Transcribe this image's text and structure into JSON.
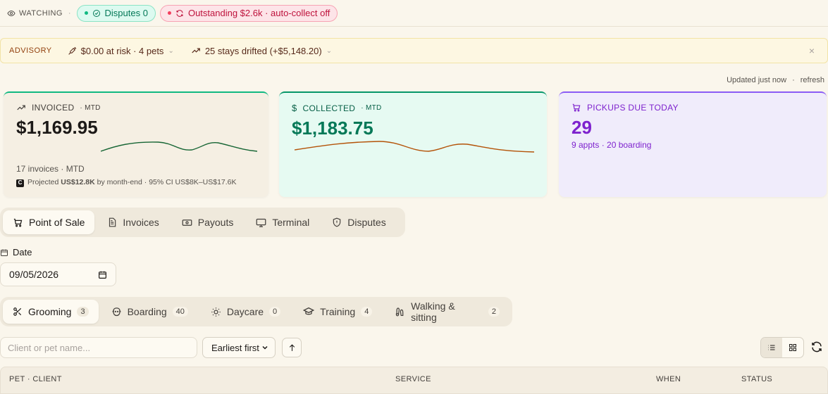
{
  "watchbar": {
    "label": "WATCHING",
    "separator": "·",
    "disputes": "Disputes 0",
    "outstanding": "Outstanding $2.6k · auto-collect off"
  },
  "advisory": {
    "label": "ADVISORY",
    "risk": "$0.00 at risk · 4 pets",
    "drift": "25 stays drifted (+$5,148.20)",
    "close": "×"
  },
  "updated": {
    "text": "Updated just now",
    "sep": "·",
    "refresh": "refresh"
  },
  "cards": [
    {
      "title": "INVOICED",
      "suffix": "· MTD",
      "value": "$1,169.95",
      "sub": "17 invoices · MTD",
      "projection": {
        "pre": "Projected",
        "amount": "US$12.8K",
        "post": "by month-end · 95% CI US$8K–US$17.6K"
      }
    },
    {
      "title": "COLLECTED",
      "suffix": "· MTD",
      "value": "$1,183.75"
    },
    {
      "title": "PICKUPS DUE TODAY",
      "value": "29",
      "sub": "9 appts · 20 boarding"
    }
  ],
  "tabs": [
    {
      "label": "Point of Sale",
      "icon": "cart-icon"
    },
    {
      "label": "Invoices",
      "icon": "document-icon"
    },
    {
      "label": "Payouts",
      "icon": "banknote-icon"
    },
    {
      "label": "Terminal",
      "icon": "monitor-icon"
    },
    {
      "label": "Disputes",
      "icon": "shield-icon"
    }
  ],
  "date": {
    "label": "Date",
    "value": "09/05/2026"
  },
  "subtabs": [
    {
      "label": "Grooming",
      "count": "3"
    },
    {
      "label": "Boarding",
      "count": "40"
    },
    {
      "label": "Daycare",
      "count": "0"
    },
    {
      "label": "Training",
      "count": "4"
    },
    {
      "label": "Walking & sitting",
      "count": "2"
    }
  ],
  "search": {
    "placeholder": "Client or pet name..."
  },
  "sort": {
    "value": "Earliest first"
  },
  "table": {
    "columns": [
      "PET · CLIENT",
      "SERVICE",
      "WHEN",
      "STATUS"
    ]
  },
  "colors": {
    "green": "#047857",
    "red": "#be123c",
    "purple": "#7e22ce",
    "amber": "#92400e"
  }
}
